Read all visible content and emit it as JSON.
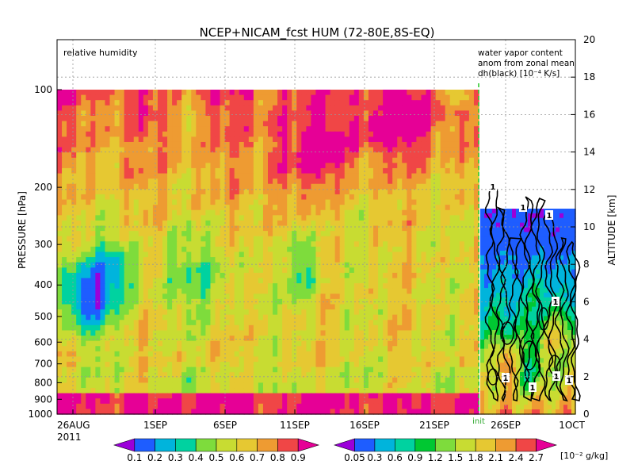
{
  "chart_data": {
    "type": "heatmap",
    "title": "NCEP+NICAM_fcst HUM (72-80E,8S-EQ)",
    "left_panel": {
      "label": "relative humidity",
      "x_ticks": [
        "26AUG",
        "1SEP",
        "6SEP",
        "11SEP",
        "16SEP",
        "21SEP"
      ],
      "x_year": "2011",
      "init_label": "init"
    },
    "right_panel": {
      "label_lines": [
        "water vapor content",
        "anom from zonal mean",
        "dh(black) [10⁻⁴ K/s]"
      ],
      "x_ticks": [
        "26SEP",
        "1OCT"
      ],
      "contour_labels": [
        "1",
        "1",
        "1",
        "1",
        "1",
        "1",
        "1",
        "1"
      ]
    },
    "y_left": {
      "label": "PRESSURE [hPa]",
      "ticks": [
        "100",
        "200",
        "300",
        "400",
        "500",
        "600",
        "700",
        "800",
        "900",
        "1000"
      ],
      "values": [
        100,
        200,
        300,
        400,
        500,
        600,
        700,
        800,
        900,
        1000
      ]
    },
    "y_right": {
      "label": "ALTITUDE [km]",
      "ticks": [
        "0",
        "2",
        "4",
        "6",
        "8",
        "10",
        "12",
        "14",
        "16",
        "18",
        "20"
      ],
      "values": [
        0,
        2,
        4,
        6,
        8,
        10,
        12,
        14,
        16,
        18,
        20
      ]
    },
    "colorbar_left": {
      "labels": [
        "0.1",
        "0.2",
        "0.3",
        "0.4",
        "0.5",
        "0.6",
        "0.7",
        "0.8",
        "0.9"
      ],
      "colors": [
        "#9b00d9",
        "#1e5dff",
        "#00b4dc",
        "#00d2a0",
        "#7edc3c",
        "#c8dc32",
        "#e6c832",
        "#ee9b32",
        "#f04646",
        "#e60096"
      ]
    },
    "colorbar_right": {
      "labels": [
        "0.05",
        "0.3",
        "0.6",
        "0.9",
        "1.2",
        "1.5",
        "1.8",
        "2.1",
        "2.4",
        "2.7"
      ],
      "unit": "[10⁻² g/kg]",
      "colors": [
        "#9b00d9",
        "#1e5dff",
        "#00b4dc",
        "#00d2a0",
        "#00c832",
        "#7edc3c",
        "#c8dc32",
        "#e6c832",
        "#ee9b32",
        "#f04646",
        "#e60096"
      ]
    }
  }
}
